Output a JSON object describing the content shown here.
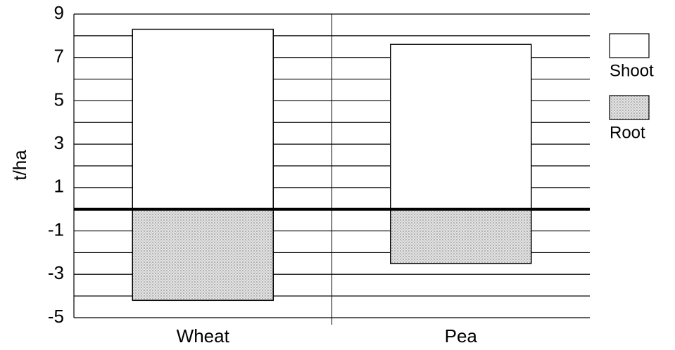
{
  "chart_data": {
    "type": "bar",
    "ylabel": "t/ha",
    "categories": [
      "Wheat",
      "Pea"
    ],
    "series": [
      {
        "name": "Shoot",
        "color": "#ffffff",
        "values": [
          8.3,
          7.6
        ]
      },
      {
        "name": "Root",
        "color": "#cfcfcf",
        "values": [
          -4.2,
          -2.5
        ]
      }
    ],
    "ylim": [
      -5,
      9
    ],
    "yticks": [
      -5,
      -3,
      -1,
      1,
      3,
      5,
      7,
      9
    ],
    "minor_yticks": [
      -4,
      -2,
      0,
      2,
      4,
      6,
      8
    ],
    "grid": true,
    "legend": "right"
  }
}
